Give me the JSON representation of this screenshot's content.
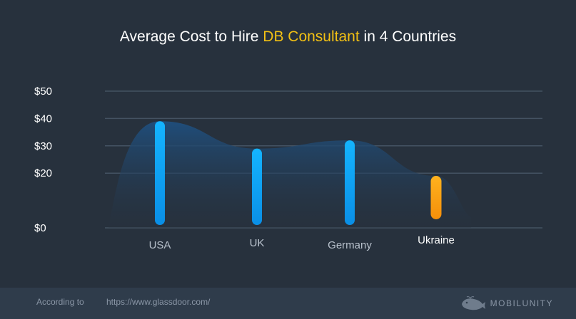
{
  "title": {
    "prefix": "Average Cost to Hire ",
    "highlight": "DB Consultant",
    "suffix": " in 4 Countries"
  },
  "colors": {
    "background": "#27313d",
    "footer": "#2f3c4b",
    "accent": "#f2c014",
    "bar_blue": "#0ea3f5",
    "bar_orange": "#f5a70e",
    "area": "#1f4a75",
    "grid": "#445262",
    "text_muted": "#b8c1cc"
  },
  "chart_data": {
    "type": "bar",
    "title": "Average Cost to Hire DB Consultant in 4 Countries",
    "categories": [
      "USA",
      "UK",
      "Germany",
      "Ukraine"
    ],
    "values": [
      39,
      29,
      32,
      19
    ],
    "highlight_category": "Ukraine",
    "ylim": [
      0,
      50
    ],
    "yticks": [
      0,
      20,
      30,
      40,
      50
    ],
    "ytick_labels": [
      "$0",
      "$20",
      "$30",
      "$40",
      "$50"
    ],
    "xlabel": "",
    "ylabel": "",
    "grid": true
  },
  "footer": {
    "source_label": "According to",
    "source_url": "https://www.glassdoor.com/",
    "brand": "MOBILUNITY",
    "brand_icon": "whale-icon"
  }
}
